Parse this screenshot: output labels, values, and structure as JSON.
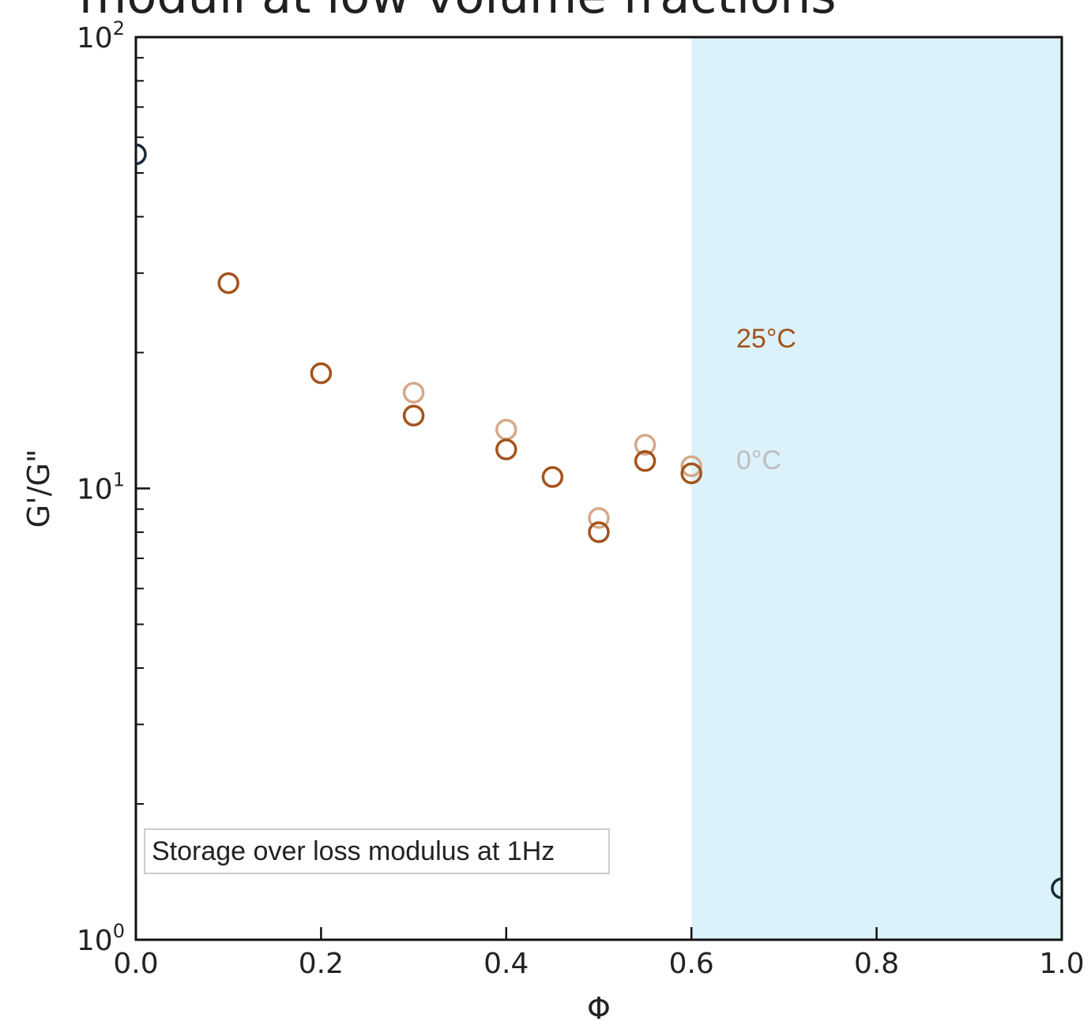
{
  "page": {
    "title_partial": "moduli at low volume fractions"
  },
  "chart_data": {
    "type": "scatter",
    "xlabel": "Φ",
    "ylabel": "G'/G\"",
    "xlim": [
      0.0,
      1.0
    ],
    "ylim": [
      1,
      100
    ],
    "yscale": "log",
    "x_ticks": [
      "0.0",
      "0.2",
      "0.4",
      "0.6",
      "0.8",
      "1.0"
    ],
    "x_tick_values": [
      0.0,
      0.2,
      0.4,
      0.6,
      0.8,
      1.0
    ],
    "y_ticks": [
      {
        "value": 1,
        "base": "10",
        "exp": "0"
      },
      {
        "value": 10,
        "base": "10",
        "exp": "1"
      },
      {
        "value": 100,
        "base": "10",
        "exp": "2"
      }
    ],
    "shaded_region": {
      "x_from": 0.6,
      "x_to": 1.0,
      "color": "#dcf2fb"
    },
    "series": [
      {
        "name": "25°C",
        "color": "#a3531c",
        "points": [
          {
            "x": 0.1,
            "y": 28.5
          },
          {
            "x": 0.2,
            "y": 18.0
          },
          {
            "x": 0.3,
            "y": 14.5
          },
          {
            "x": 0.4,
            "y": 12.2
          },
          {
            "x": 0.45,
            "y": 10.6
          },
          {
            "x": 0.5,
            "y": 8.0
          },
          {
            "x": 0.55,
            "y": 11.5
          },
          {
            "x": 0.6,
            "y": 10.8
          }
        ]
      },
      {
        "name": "0°C",
        "color": "#d4a98a",
        "points": [
          {
            "x": 0.3,
            "y": 16.3
          },
          {
            "x": 0.4,
            "y": 13.5
          },
          {
            "x": 0.5,
            "y": 8.6
          },
          {
            "x": 0.55,
            "y": 12.5
          },
          {
            "x": 0.6,
            "y": 11.2
          }
        ]
      },
      {
        "name": "",
        "color": "#1a2a3a",
        "points": [
          {
            "x": 0.0,
            "y": 55
          },
          {
            "x": 1.0,
            "y": 1.3
          }
        ]
      }
    ],
    "annotations": {
      "label_25c": "25°C",
      "label_0c": "0°C",
      "box_text": "Storage over loss modulus at 1Hz"
    }
  }
}
